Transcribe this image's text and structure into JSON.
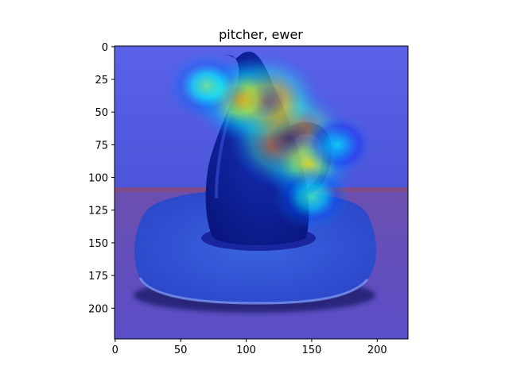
{
  "chart_data": {
    "type": "heatmap",
    "title": "pitcher, ewer",
    "xlabel": "",
    "ylabel": "",
    "xlim": [
      -0.5,
      223.5
    ],
    "ylim": [
      223.5,
      -0.5
    ],
    "xticks": [
      0,
      50,
      100,
      150,
      200
    ],
    "yticks": [
      0,
      25,
      50,
      75,
      100,
      125,
      150,
      175,
      200
    ],
    "grid": false,
    "legend": "none",
    "image": {
      "content": "photo of a dark blue pitcher on a saucer overlaid with a jet-colormap attention heatmap",
      "background_color": "#5a5ee6",
      "table_color": "#6a4fb0",
      "hotspots": [
        {
          "x": 133,
          "y": 70,
          "intensity": 1.0
        },
        {
          "x": 115,
          "y": 42,
          "intensity": 0.9
        },
        {
          "x": 95,
          "y": 40,
          "intensity": 0.7
        },
        {
          "x": 148,
          "y": 90,
          "intensity": 0.65
        },
        {
          "x": 70,
          "y": 30,
          "intensity": 0.5
        },
        {
          "x": 150,
          "y": 115,
          "intensity": 0.45
        },
        {
          "x": 170,
          "y": 75,
          "intensity": 0.35
        }
      ]
    }
  }
}
